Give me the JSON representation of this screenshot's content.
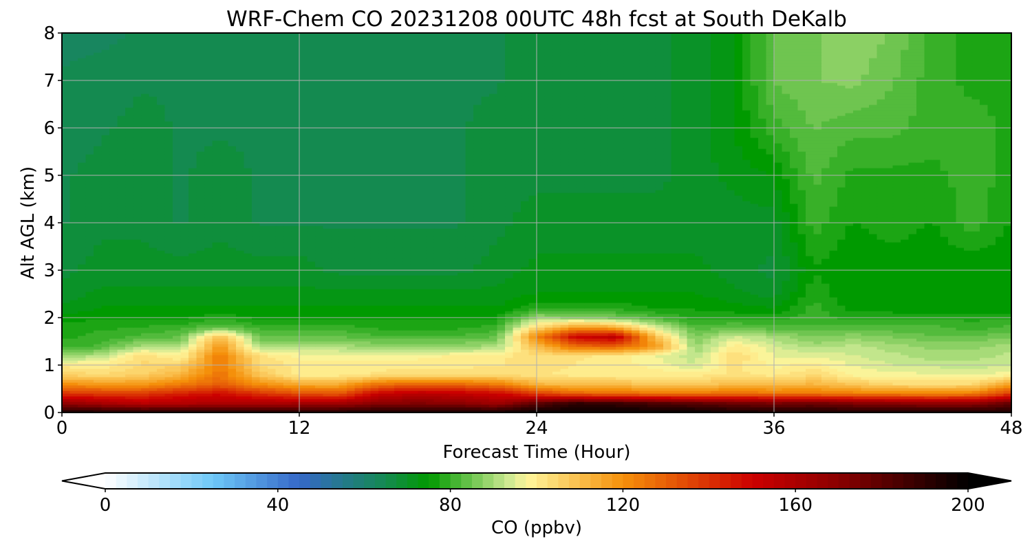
{
  "chart_data": {
    "type": "heatmap",
    "subtype": "filled-contour",
    "title": "WRF-Chem CO  20231208 00UTC 48h fcst at South DeKalb",
    "xlabel": "Forecast Time (Hour)",
    "ylabel": "Alt AGL (km)",
    "xlim": [
      0,
      48
    ],
    "ylim": [
      0,
      8
    ],
    "x_ticks": [
      "0",
      "12",
      "24",
      "36",
      "48"
    ],
    "y_ticks": [
      "0",
      "1",
      "2",
      "3",
      "4",
      "5",
      "6",
      "7",
      "8"
    ],
    "grid": true,
    "colorbar": {
      "label": "CO  (ppbv)",
      "orientation": "horizontal",
      "range": [
        0,
        200
      ],
      "extend": "both",
      "ticks": [
        "0",
        "40",
        "80",
        "120",
        "160",
        "200"
      ],
      "color_stops": [
        {
          "value": 0,
          "color": "#ffffff"
        },
        {
          "value": 25,
          "color": "#6ec8f8"
        },
        {
          "value": 45,
          "color": "#3568c8"
        },
        {
          "value": 65,
          "color": "#148a50"
        },
        {
          "value": 75,
          "color": "#009a00"
        },
        {
          "value": 93,
          "color": "#c8e890"
        },
        {
          "value": 98,
          "color": "#fff59a"
        },
        {
          "value": 120,
          "color": "#f5900a"
        },
        {
          "value": 150,
          "color": "#cc0000"
        },
        {
          "value": 170,
          "color": "#8a0000"
        },
        {
          "value": 200,
          "color": "#000000"
        }
      ]
    },
    "x": [
      0,
      2,
      4,
      6,
      8,
      10,
      12,
      14,
      16,
      18,
      20,
      22,
      24,
      26,
      28,
      30,
      32,
      34,
      36,
      38,
      40,
      42,
      44,
      46,
      48
    ],
    "y": [
      0,
      0.2,
      0.4,
      0.6,
      0.8,
      1.0,
      1.2,
      1.4,
      1.6,
      1.8,
      2.0,
      2.2,
      2.5,
      3,
      4,
      5,
      6,
      7,
      8
    ],
    "z": [
      [
        196,
        196,
        196,
        196,
        196,
        196,
        196,
        196,
        196,
        196,
        196,
        198,
        200,
        200,
        200,
        200,
        200,
        198,
        196,
        196,
        196,
        196,
        196,
        196,
        196
      ],
      [
        168,
        162,
        156,
        158,
        160,
        160,
        162,
        162,
        170,
        172,
        170,
        164,
        180,
        190,
        188,
        184,
        180,
        176,
        174,
        176,
        172,
        170,
        168,
        168,
        178
      ],
      [
        140,
        138,
        138,
        144,
        148,
        140,
        134,
        132,
        152,
        156,
        154,
        150,
        138,
        130,
        128,
        126,
        126,
        128,
        126,
        126,
        124,
        124,
        122,
        124,
        138
      ],
      [
        120,
        118,
        118,
        124,
        130,
        120,
        114,
        114,
        126,
        130,
        128,
        124,
        112,
        110,
        110,
        108,
        108,
        110,
        110,
        112,
        108,
        104,
        104,
        104,
        116
      ],
      [
        106,
        104,
        106,
        112,
        126,
        108,
        100,
        100,
        102,
        104,
        104,
        104,
        102,
        100,
        100,
        100,
        100,
        102,
        100,
        104,
        98,
        97,
        97,
        96,
        98
      ],
      [
        100,
        100,
        104,
        106,
        124,
        104,
        100,
        100,
        100,
        100,
        100,
        101,
        103,
        101,
        100,
        98,
        94,
        102,
        98,
        100,
        96,
        94,
        93,
        92,
        94
      ],
      [
        88,
        92,
        104,
        98,
        124,
        102,
        98,
        98,
        98,
        98,
        99,
        100,
        104,
        102,
        100,
        96,
        92,
        104,
        96,
        96,
        94,
        92,
        90,
        90,
        92
      ],
      [
        80,
        82,
        90,
        90,
        118,
        90,
        90,
        90,
        88,
        88,
        88,
        90,
        110,
        128,
        130,
        118,
        88,
        100,
        94,
        90,
        92,
        90,
        88,
        88,
        90
      ],
      [
        78,
        80,
        82,
        84,
        110,
        84,
        84,
        84,
        82,
        82,
        82,
        84,
        122,
        150,
        155,
        110,
        86,
        94,
        90,
        86,
        88,
        86,
        84,
        84,
        86
      ],
      [
        77,
        78,
        79,
        80,
        84,
        80,
        80,
        80,
        78,
        78,
        78,
        80,
        104,
        118,
        114,
        94,
        82,
        84,
        82,
        82,
        82,
        82,
        82,
        80,
        82
      ],
      [
        75,
        76,
        76,
        76,
        78,
        76,
        76,
        76,
        76,
        76,
        76,
        76,
        90,
        88,
        86,
        82,
        78,
        78,
        78,
        80,
        78,
        78,
        78,
        78,
        78
      ],
      [
        72,
        74,
        74,
        74,
        74,
        74,
        74,
        74,
        74,
        74,
        74,
        74,
        78,
        78,
        78,
        76,
        76,
        75,
        74,
        80,
        75,
        75,
        74,
        74,
        74
      ],
      [
        70,
        72,
        72,
        72,
        72,
        72,
        72,
        72,
        72,
        72,
        72,
        72,
        74,
        74,
        74,
        74,
        74,
        72,
        70,
        78,
        74,
        74,
        74,
        74,
        74
      ],
      [
        68,
        70,
        70,
        70,
        70,
        70,
        70,
        68,
        68,
        68,
        68,
        70,
        72,
        72,
        72,
        72,
        72,
        70,
        68,
        76,
        74,
        74,
        74,
        74,
        74
      ],
      [
        66,
        68,
        68,
        66,
        68,
        66,
        66,
        66,
        66,
        66,
        66,
        68,
        70,
        70,
        70,
        70,
        70,
        70,
        70,
        80,
        76,
        78,
        76,
        80,
        76
      ],
      [
        66,
        67,
        68,
        66,
        67,
        66,
        66,
        66,
        66,
        66,
        66,
        68,
        68,
        68,
        68,
        68,
        70,
        72,
        74,
        82,
        78,
        78,
        78,
        80,
        78
      ],
      [
        65,
        66,
        67,
        66,
        66,
        66,
        66,
        66,
        66,
        66,
        66,
        67,
        68,
        68,
        68,
        68,
        70,
        74,
        80,
        84,
        82,
        82,
        80,
        80,
        78
      ],
      [
        64,
        65,
        66,
        66,
        66,
        66,
        66,
        66,
        66,
        66,
        66,
        66,
        68,
        68,
        68,
        68,
        70,
        74,
        84,
        86,
        87,
        84,
        80,
        78,
        78
      ],
      [
        63,
        63,
        64,
        64,
        64,
        64,
        64,
        65,
        66,
        66,
        66,
        66,
        68,
        68,
        68,
        68,
        70,
        74,
        84,
        86,
        88,
        86,
        80,
        78,
        78
      ]
    ]
  }
}
